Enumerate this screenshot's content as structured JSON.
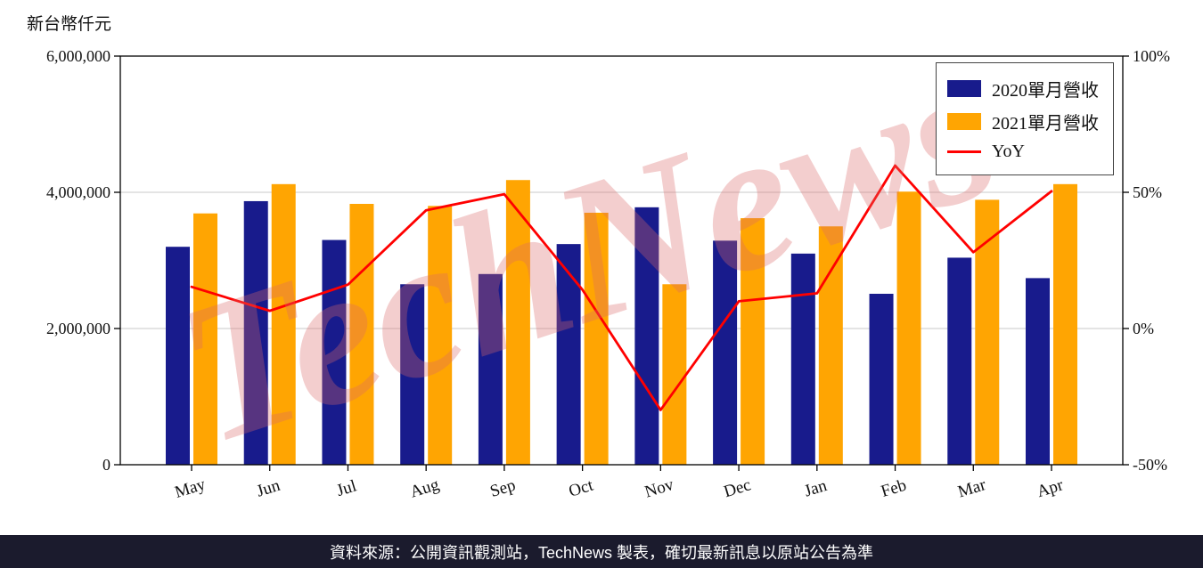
{
  "chart_data": {
    "type": "bar",
    "title": "",
    "unit_label": "新台幣仟元",
    "categories": [
      "May",
      "Jun",
      "Jul",
      "Aug",
      "Sep",
      "Oct",
      "Nov",
      "Dec",
      "Jan",
      "Feb",
      "Mar",
      "Apr"
    ],
    "series": [
      {
        "name": "2020單月營收",
        "type": "bar",
        "axis": "left",
        "color": "#181b8c",
        "values": [
          3200000,
          3870000,
          3300000,
          2650000,
          2800000,
          3240000,
          3780000,
          3290000,
          3100000,
          2510000,
          3040000,
          2740000
        ]
      },
      {
        "name": "2021單月營收",
        "type": "bar",
        "axis": "left",
        "color": "#ffa502",
        "values": [
          3690000,
          4120000,
          3830000,
          3800000,
          4180000,
          3700000,
          2650000,
          3620000,
          3500000,
          4010000,
          3890000,
          4120000
        ]
      },
      {
        "name": "YoY",
        "type": "line",
        "axis": "right",
        "color": "#ff0000",
        "values": [
          15.3,
          6.5,
          16.1,
          43.4,
          49.3,
          14.2,
          -29.9,
          10.0,
          12.9,
          59.8,
          28.0,
          50.4
        ]
      }
    ],
    "left_axis": {
      "min": 0,
      "max": 6000000,
      "ticks": [
        0,
        2000000,
        4000000,
        6000000
      ],
      "tick_labels": [
        "0",
        "2,000,000",
        "4,000,000",
        "6,000,000"
      ]
    },
    "right_axis": {
      "min": -50,
      "max": 100,
      "ticks": [
        -50,
        0,
        50,
        100
      ],
      "tick_labels": [
        "-50%",
        "0%",
        "50%",
        "100%"
      ]
    },
    "grid": "horizontal",
    "legend_position": "top-right",
    "colors": {
      "gridline": "#c9c9c9",
      "spine": "#000000"
    }
  },
  "watermark": {
    "text": "TechNews",
    "color": "#dd6a6a",
    "opacity": 0.32
  },
  "footer": {
    "text": "資料來源：公開資訊觀測站，TechNews 製表，確切最新訊息以原站公告為準",
    "background": "#1b1b2d",
    "color": "#ffffff"
  }
}
